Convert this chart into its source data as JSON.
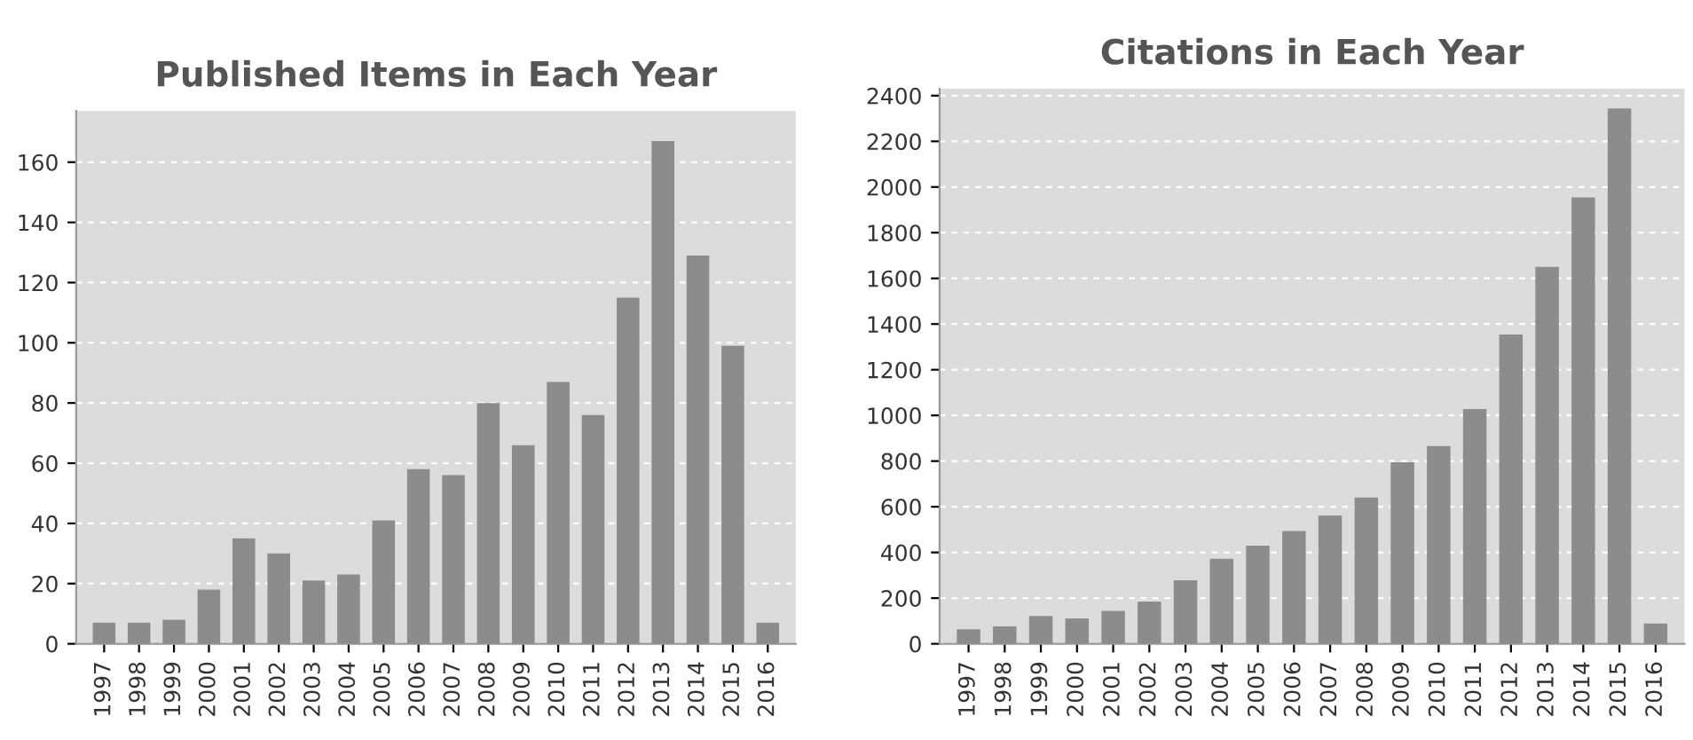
{
  "chart_data": [
    {
      "type": "bar",
      "title": "Published Items in Each Year",
      "categories": [
        "1997",
        "1998",
        "1999",
        "2000",
        "2001",
        "2002",
        "2003",
        "2004",
        "2005",
        "2006",
        "2007",
        "2008",
        "2009",
        "2010",
        "2011",
        "2012",
        "2013",
        "2014",
        "2015",
        "2016"
      ],
      "series": [
        {
          "color": "#8c8c8c",
          "values": [
            7,
            7,
            8,
            18,
            35,
            30,
            21,
            23,
            41,
            58,
            56,
            80,
            66,
            87,
            76,
            115,
            167,
            129,
            99,
            7
          ]
        }
      ],
      "ylim": [
        0,
        177
      ],
      "yticks": [
        0,
        20,
        40,
        60,
        80,
        100,
        120,
        140,
        160
      ],
      "grid": "y"
    },
    {
      "type": "bar",
      "title": "Citations in Each Year",
      "categories": [
        "1997",
        "1998",
        "1999",
        "2000",
        "2001",
        "2002",
        "2003",
        "2004",
        "2005",
        "2006",
        "2007",
        "2008",
        "2009",
        "2010",
        "2011",
        "2012",
        "2013",
        "2014",
        "2015",
        "2016"
      ],
      "series": [
        {
          "color": "#8c8c8c",
          "values": [
            63,
            76,
            122,
            111,
            144,
            185,
            278,
            372,
            430,
            494,
            562,
            640,
            795,
            866,
            1028,
            1354,
            1650,
            1954,
            2344,
            89
          ]
        }
      ],
      "ylim": [
        0,
        2430
      ],
      "yticks": [
        0,
        200,
        400,
        600,
        800,
        1000,
        1200,
        1400,
        1600,
        1800,
        2000,
        2200,
        2400
      ],
      "grid": "y"
    }
  ]
}
